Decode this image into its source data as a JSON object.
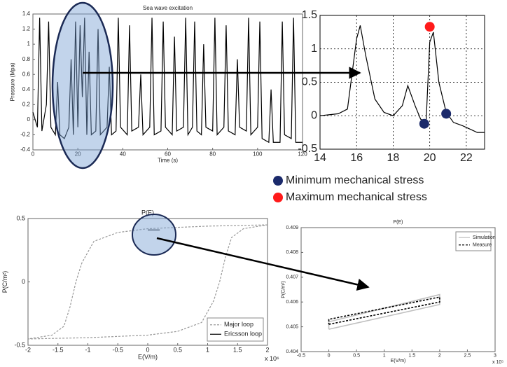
{
  "chart_data": [
    {
      "type": "line",
      "title": "Sea wave excitation",
      "x_label": "Time (s)",
      "y_label": "Pressure (Mpa)",
      "xlim": [
        0,
        120
      ],
      "xticks": [
        0,
        20,
        40,
        60,
        80,
        100,
        120
      ],
      "ylim": [
        -0.4,
        1.4
      ],
      "yticks": [
        -0.4,
        -0.2,
        0,
        0.2,
        0.4,
        0.6,
        0.8,
        1,
        1.2,
        1.4
      ],
      "grid": false,
      "series": [
        {
          "color": "#000000",
          "x": [
            0,
            2,
            3,
            4,
            6,
            7,
            8,
            10,
            11,
            12,
            14,
            16,
            17,
            18,
            19,
            20,
            21,
            22,
            23,
            24,
            25,
            26,
            28,
            29,
            30,
            33,
            34,
            35,
            37,
            38,
            39,
            42,
            43,
            44,
            47,
            48,
            49,
            52,
            53,
            54,
            57,
            58,
            59,
            62,
            63,
            64,
            67,
            68,
            69,
            71,
            72,
            73,
            75,
            76,
            77,
            80,
            81,
            82,
            85,
            86,
            87,
            90,
            91,
            92,
            95,
            96,
            97,
            100,
            101,
            102,
            105,
            106,
            107,
            110,
            111,
            112,
            115,
            116,
            117,
            120
          ],
          "values": [
            0.1,
            -0.1,
            1.35,
            -0.15,
            0.2,
            1.3,
            -0.1,
            -0.2,
            0.5,
            -0.2,
            -0.25,
            -0.1,
            0.8,
            -0.2,
            1.3,
            -0.1,
            1.25,
            0.3,
            1.35,
            -0.2,
            0.9,
            -0.2,
            -0.15,
            1.2,
            -0.2,
            -0.1,
            0.7,
            -0.2,
            -0.15,
            1.35,
            -0.1,
            -0.2,
            1.25,
            -0.15,
            -0.1,
            0.6,
            -0.2,
            -0.1,
            1.35,
            -0.2,
            -0.15,
            1.3,
            -0.1,
            -0.2,
            1.1,
            -0.15,
            -0.1,
            1.35,
            -0.2,
            -0.1,
            1.3,
            -0.15,
            -0.2,
            1.0,
            -0.1,
            -0.15,
            1.35,
            -0.2,
            -0.1,
            1.25,
            -0.15,
            -0.2,
            0.8,
            -0.1,
            -0.15,
            1.35,
            -0.2,
            -0.1,
            1.3,
            -0.25,
            -0.3,
            0.4,
            -0.3,
            -0.3,
            1.3,
            -0.2,
            -0.25,
            1.35,
            -0.3,
            -0.3
          ]
        }
      ]
    },
    {
      "type": "line",
      "legend": "below",
      "xlim": [
        14,
        23
      ],
      "xticks": [
        14,
        16,
        18,
        20,
        22
      ],
      "ylim": [
        -0.5,
        1.5
      ],
      "yticks": [
        -0.5,
        0,
        0.5,
        1,
        1.5
      ],
      "grid": true,
      "series": [
        {
          "color": "#000000",
          "x": [
            14,
            15,
            15.5,
            16,
            16.2,
            16.5,
            17,
            17.5,
            18,
            18.5,
            18.8,
            19.2,
            19.5,
            19.8,
            20,
            20.2,
            20.5,
            20.9,
            21.3,
            21.8,
            22.2,
            22.6,
            23
          ],
          "values": [
            0,
            0.03,
            0.1,
            1.15,
            1.35,
            0.9,
            0.25,
            0.05,
            0,
            0.15,
            0.45,
            0.15,
            -0.05,
            -0.1,
            1.1,
            1.25,
            0.5,
            0.05,
            -0.1,
            -0.15,
            -0.2,
            -0.25,
            -0.25
          ]
        },
        {
          "type": "scatter",
          "name": "Minimum mechanical stress",
          "color": "#1b2a6b",
          "x": [
            19.7,
            20.9
          ],
          "values": [
            -0.12,
            0.03
          ]
        },
        {
          "type": "scatter",
          "name": "Maximum mechanical stress",
          "color": "#ff1a1a",
          "x": [
            20.0
          ],
          "values": [
            1.33
          ]
        }
      ]
    },
    {
      "type": "line",
      "title": "P(E)",
      "x_label": "E(V/m)",
      "y_label": "P(C/m²)",
      "x_exponent": "x 10⁶",
      "legend": "lower right",
      "xlim": [
        -2,
        2
      ],
      "xticks": [
        -2,
        -1.5,
        -1,
        -0.5,
        0,
        0.5,
        1,
        1.5,
        2
      ],
      "ylim": [
        -0.5,
        0.5
      ],
      "yticks": [
        -0.5,
        0,
        0.5
      ],
      "grid": false,
      "series": [
        {
          "name": "Major loop",
          "color": "#999999",
          "style": "dashed",
          "x": [
            2,
            1,
            0,
            -0.5,
            -0.9,
            -1.1,
            -1.2,
            -1.3,
            -1.4,
            -1.6,
            -2,
            -1,
            0,
            0.5,
            0.9,
            1.1,
            1.2,
            1.3,
            1.4,
            1.6,
            2
          ],
          "values": [
            0.45,
            0.44,
            0.42,
            0.39,
            0.32,
            0.15,
            0,
            -0.2,
            -0.35,
            -0.42,
            -0.45,
            -0.44,
            -0.42,
            -0.39,
            -0.32,
            -0.15,
            0,
            0.2,
            0.35,
            0.42,
            0.45
          ]
        },
        {
          "name": "Ericsson loop",
          "color": "#000000",
          "style": "solid",
          "x": [
            0,
            0.2
          ],
          "values": [
            0.41,
            0.41
          ]
        }
      ]
    },
    {
      "type": "line",
      "title": "P(E)",
      "x_label": "E(V/m)",
      "y_label": "P(C/m²)",
      "x_exponent": "x 10⁵",
      "legend": "upper right",
      "xlim": [
        -0.5,
        3
      ],
      "xticks": [
        -0.5,
        0,
        0.5,
        1,
        1.5,
        2,
        2.5,
        3
      ],
      "ylim": [
        0.404,
        0.409
      ],
      "yticks": [
        0.404,
        0.405,
        0.406,
        0.407,
        0.408,
        0.409
      ],
      "grid": false,
      "series": [
        {
          "name": "Simulation",
          "color": "#c0c0c0",
          "style": "solid",
          "x": [
            0,
            2,
            2,
            0,
            0
          ],
          "values": [
            0.4049,
            0.4059,
            0.4063,
            0.4052,
            0.4049
          ]
        },
        {
          "name": "Measure",
          "color": "#000000",
          "style": "dashed",
          "x": [
            0,
            2,
            2,
            0,
            0
          ],
          "values": [
            0.4051,
            0.406,
            0.4062,
            0.4053,
            0.4051
          ]
        }
      ]
    }
  ]
}
